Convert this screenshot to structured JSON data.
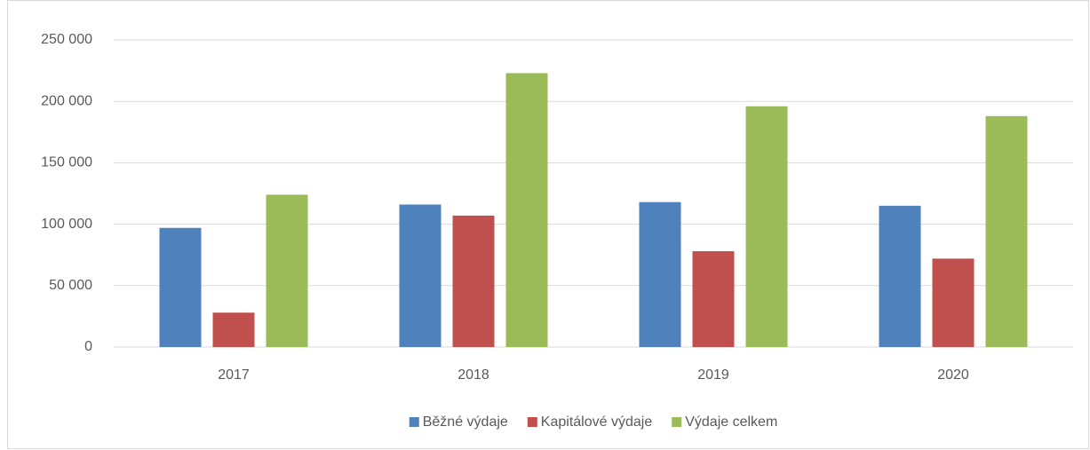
{
  "chart_data": {
    "type": "bar",
    "categories": [
      "2017",
      "2018",
      "2019",
      "2020"
    ],
    "series": [
      {
        "name": "Běžné výdaje",
        "color": "#4f81bd",
        "values": [
          97000,
          116000,
          118000,
          115000
        ]
      },
      {
        "name": "Kapitálové výdaje",
        "color": "#c0504d",
        "values": [
          28000,
          107000,
          78000,
          72000
        ]
      },
      {
        "name": "Výdaje celkem",
        "color": "#9bbb59",
        "values": [
          124000,
          223000,
          196000,
          188000
        ]
      }
    ],
    "ylim": [
      0,
      250000
    ],
    "yticks": [
      0,
      {
        "value": 50000,
        "label": "50 000"
      },
      {
        "value": 100000,
        "label": "100 000"
      },
      {
        "value": 150000,
        "label": "150 000"
      },
      {
        "value": 200000,
        "label": "200 000"
      },
      {
        "value": 250000,
        "label": "250 000"
      }
    ],
    "grid": true,
    "legend": "bottom"
  }
}
